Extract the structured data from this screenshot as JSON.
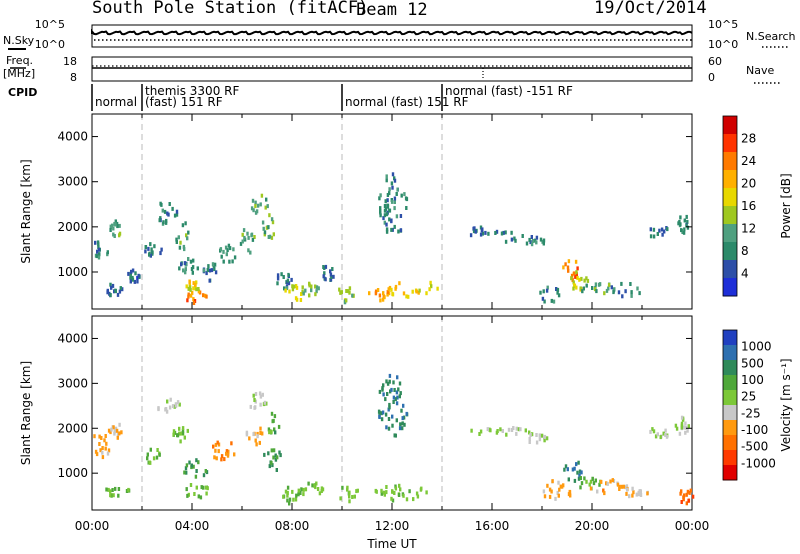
{
  "header": {
    "station": "South Pole Station (fitACF)",
    "beam": "Beam 12",
    "date": "19/Oct/2014"
  },
  "top_panels": {
    "nsky_label": "N.Sky",
    "nsearch_label": "N.Search",
    "noise_left_ticks": [
      "10^5",
      "10^0"
    ],
    "noise_right_ticks": [
      "10^5",
      "10^0"
    ],
    "freq_label": "Freq.",
    "freq_unit": "[MHz]",
    "freq_ticks": [
      "18",
      "8"
    ],
    "nave_label": "Nave",
    "nave_ticks": [
      "60",
      "0"
    ],
    "cpid_label": "CPID",
    "cpid_segments": [
      {
        "line1": "normal",
        "line2": "",
        "start_hour": 0.0,
        "end_hour": 2.0
      },
      {
        "line1": "themis 3300 RF",
        "line2": "(fast) 151 RF",
        "start_hour": 2.0,
        "end_hour": 10.0
      },
      {
        "line1": "normal (fast) 151 RF",
        "line2": "",
        "start_hour": 10.0,
        "end_hour": 14.0
      },
      {
        "line1": "normal (fast) -151 RF",
        "line2": "",
        "start_hour": 14.0,
        "end_hour": 24.0
      }
    ]
  },
  "chart_data": [
    {
      "type": "heatmap",
      "name": "power",
      "ylabel": "Slant Range [km]",
      "xlabel": "",
      "y_ticks": [
        1000,
        2000,
        3000,
        4000
      ],
      "ylim": [
        180,
        4500
      ],
      "xlim_hours": [
        0,
        24
      ],
      "colorbar_label": "Power [dB]",
      "colorbar_ticks": [
        "28",
        "24",
        "20",
        "16",
        "12",
        "8",
        "4"
      ],
      "colorbar_colors": [
        "#d00000",
        "#ff3300",
        "#ff7a00",
        "#ffb000",
        "#e8d800",
        "#9fc820",
        "#4fa080",
        "#2c8a6a",
        "#2d4fa8",
        "#1e2fd8"
      ],
      "blobs": [
        {
          "t": 0.3,
          "r": 1550,
          "dt": 0.35,
          "dr": 250,
          "v": 9
        },
        {
          "t": 0.9,
          "r": 1950,
          "dt": 0.25,
          "dr": 180,
          "v": 12
        },
        {
          "t": 0.8,
          "r": 600,
          "dt": 0.4,
          "dr": 130,
          "v": 8
        },
        {
          "t": 1.6,
          "r": 900,
          "dt": 0.3,
          "dr": 150,
          "v": 7
        },
        {
          "t": 2.4,
          "r": 1500,
          "dt": 0.35,
          "dr": 150,
          "v": 8
        },
        {
          "t": 2.9,
          "r": 2300,
          "dt": 0.5,
          "dr": 250,
          "v": 9
        },
        {
          "t": 3.6,
          "r": 1800,
          "dt": 0.3,
          "dr": 300,
          "v": 12
        },
        {
          "t": 3.8,
          "r": 1100,
          "dt": 0.4,
          "dr": 200,
          "v": 10
        },
        {
          "t": 4.1,
          "r": 450,
          "dt": 0.45,
          "dr": 150,
          "v": 24
        },
        {
          "t": 4.0,
          "r": 700,
          "dt": 0.3,
          "dr": 120,
          "v": 18
        },
        {
          "t": 4.7,
          "r": 1000,
          "dt": 0.3,
          "dr": 200,
          "v": 9
        },
        {
          "t": 5.4,
          "r": 1400,
          "dt": 0.35,
          "dr": 200,
          "v": 11
        },
        {
          "t": 6.2,
          "r": 1700,
          "dt": 0.3,
          "dr": 300,
          "v": 12
        },
        {
          "t": 6.6,
          "r": 2500,
          "dt": 0.4,
          "dr": 250,
          "v": 13
        },
        {
          "t": 7.1,
          "r": 2000,
          "dt": 0.35,
          "dr": 300,
          "v": 12
        },
        {
          "t": 7.6,
          "r": 800,
          "dt": 0.35,
          "dr": 200,
          "v": 8
        },
        {
          "t": 8.0,
          "r": 500,
          "dt": 0.4,
          "dr": 200,
          "v": 16
        },
        {
          "t": 8.7,
          "r": 600,
          "dt": 0.35,
          "dr": 150,
          "v": 14
        },
        {
          "t": 9.4,
          "r": 1000,
          "dt": 0.25,
          "dr": 200,
          "v": 8
        },
        {
          "t": 10.1,
          "r": 500,
          "dt": 0.35,
          "dr": 180,
          "v": 16
        },
        {
          "t": 11.4,
          "r": 500,
          "dt": 0.5,
          "dr": 150,
          "v": 22
        },
        {
          "t": 12.4,
          "r": 600,
          "dt": 0.6,
          "dr": 160,
          "v": 20
        },
        {
          "t": 13.3,
          "r": 650,
          "dt": 0.5,
          "dr": 150,
          "v": 18
        },
        {
          "t": 12.0,
          "r": 2500,
          "dt": 0.6,
          "dr": 700,
          "v": 10
        },
        {
          "t": 15.3,
          "r": 1900,
          "dt": 0.6,
          "dr": 120,
          "v": 8
        },
        {
          "t": 16.6,
          "r": 1800,
          "dt": 0.6,
          "dr": 140,
          "v": 8
        },
        {
          "t": 17.7,
          "r": 1650,
          "dt": 0.5,
          "dr": 140,
          "v": 9
        },
        {
          "t": 18.2,
          "r": 500,
          "dt": 0.5,
          "dr": 200,
          "v": 9
        },
        {
          "t": 19.1,
          "r": 1050,
          "dt": 0.4,
          "dr": 250,
          "v": 24
        },
        {
          "t": 19.4,
          "r": 800,
          "dt": 0.4,
          "dr": 200,
          "v": 18
        },
        {
          "t": 20.2,
          "r": 650,
          "dt": 0.8,
          "dr": 150,
          "v": 12
        },
        {
          "t": 21.3,
          "r": 600,
          "dt": 0.7,
          "dr": 150,
          "v": 10
        },
        {
          "t": 22.6,
          "r": 1900,
          "dt": 0.5,
          "dr": 150,
          "v": 8
        },
        {
          "t": 23.6,
          "r": 2050,
          "dt": 0.3,
          "dr": 200,
          "v": 9
        }
      ]
    },
    {
      "type": "heatmap",
      "name": "velocity",
      "ylabel": "Slant Range [km]",
      "xlabel": "Time UT",
      "x_ticks": [
        "00:00",
        "04:00",
        "08:00",
        "12:00",
        "16:00",
        "20:00",
        "00:00"
      ],
      "y_ticks": [
        1000,
        2000,
        3000,
        4000
      ],
      "ylim": [
        180,
        4500
      ],
      "xlim_hours": [
        0,
        24
      ],
      "colorbar_label": "Velocity [m s⁻¹]",
      "colorbar_ticks": [
        "1000",
        "500",
        "100",
        "25",
        "-25",
        "-100",
        "-500",
        "-1000"
      ],
      "colorbar_colors": [
        "#2040c0",
        "#2e70b0",
        "#2f8a5a",
        "#4fa83a",
        "#7cc838",
        "#c8c8c8",
        "#ff9a10",
        "#ff7000",
        "#ff3a00",
        "#e00000"
      ],
      "blobs": [
        {
          "t": 0.3,
          "r": 1600,
          "dt": 0.4,
          "dr": 300,
          "v": -300
        },
        {
          "t": 0.9,
          "r": 1950,
          "dt": 0.3,
          "dr": 180,
          "v": -200
        },
        {
          "t": 1.0,
          "r": 600,
          "dt": 0.5,
          "dr": 120,
          "v": 200
        },
        {
          "t": 2.3,
          "r": 1400,
          "dt": 0.4,
          "dr": 180,
          "v": 300
        },
        {
          "t": 3.0,
          "r": 2500,
          "dt": 0.5,
          "dr": 150,
          "v": 0
        },
        {
          "t": 3.5,
          "r": 1900,
          "dt": 0.3,
          "dr": 200,
          "v": 200
        },
        {
          "t": 4.1,
          "r": 1100,
          "dt": 0.5,
          "dr": 200,
          "v": 500
        },
        {
          "t": 4.1,
          "r": 600,
          "dt": 0.6,
          "dr": 150,
          "v": 250
        },
        {
          "t": 5.2,
          "r": 1500,
          "dt": 0.5,
          "dr": 250,
          "v": -400
        },
        {
          "t": 6.4,
          "r": 1900,
          "dt": 0.4,
          "dr": 300,
          "v": -300
        },
        {
          "t": 6.6,
          "r": 2600,
          "dt": 0.4,
          "dr": 200,
          "v": 0
        },
        {
          "t": 7.2,
          "r": 2100,
          "dt": 0.3,
          "dr": 250,
          "v": 300
        },
        {
          "t": 7.2,
          "r": 1300,
          "dt": 0.4,
          "dr": 250,
          "v": 500
        },
        {
          "t": 8.0,
          "r": 500,
          "dt": 0.5,
          "dr": 200,
          "v": 200
        },
        {
          "t": 8.8,
          "r": 650,
          "dt": 0.4,
          "dr": 150,
          "v": 150
        },
        {
          "t": 10.2,
          "r": 550,
          "dt": 0.5,
          "dr": 180,
          "v": 200
        },
        {
          "t": 12.3,
          "r": 550,
          "dt": 1.1,
          "dr": 170,
          "v": 150
        },
        {
          "t": 12.0,
          "r": 2500,
          "dt": 0.6,
          "dr": 700,
          "v": 600
        },
        {
          "t": 16.2,
          "r": 1950,
          "dt": 1.2,
          "dr": 110,
          "v": 0
        },
        {
          "t": 17.7,
          "r": 1800,
          "dt": 0.5,
          "dr": 150,
          "v": 0
        },
        {
          "t": 18.6,
          "r": 600,
          "dt": 0.6,
          "dr": 250,
          "v": -300
        },
        {
          "t": 19.2,
          "r": 1050,
          "dt": 0.4,
          "dr": 250,
          "v": 600
        },
        {
          "t": 19.8,
          "r": 800,
          "dt": 0.5,
          "dr": 150,
          "v": 300
        },
        {
          "t": 20.6,
          "r": 700,
          "dt": 0.8,
          "dr": 150,
          "v": -300
        },
        {
          "t": 21.5,
          "r": 600,
          "dt": 0.8,
          "dr": 120,
          "v": -200
        },
        {
          "t": 22.6,
          "r": 1900,
          "dt": 0.5,
          "dr": 130,
          "v": 0
        },
        {
          "t": 23.6,
          "r": 2050,
          "dt": 0.3,
          "dr": 200,
          "v": 0
        },
        {
          "t": 23.7,
          "r": 500,
          "dt": 0.3,
          "dr": 200,
          "v": -600
        }
      ]
    }
  ]
}
